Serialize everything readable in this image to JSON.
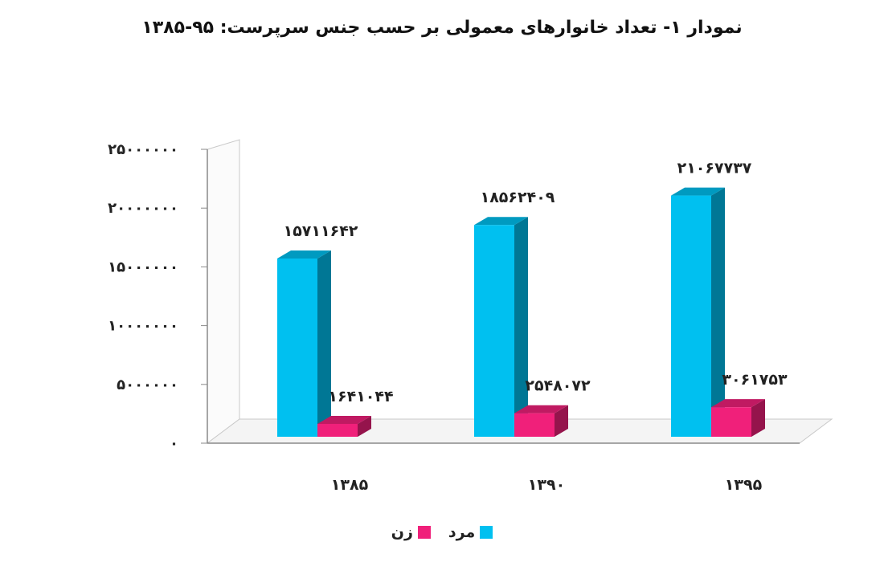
{
  "title": "نمودار ۱- تعداد خانوارهای معمولی بر حسب جنس سرپرست: ۹۵-۱۳۸۵",
  "chart_data": {
    "type": "bar",
    "title": "نمودار ۱- تعداد خانوارهای معمولی بر حسب جنس سرپرست: ۹۵-۱۳۸۵",
    "categories": [
      "۱۳۸۵",
      "۱۳۹۰",
      "۱۳۹۵"
    ],
    "series": [
      {
        "name": "مرد",
        "color": "#00c0f0",
        "values": [
          15711642,
          18562409,
          21067737
        ],
        "labels": [
          "۱۵۷۱۱۶۴۲",
          "۱۸۵۶۲۴۰۹",
          "۲۱۰۶۷۷۳۷"
        ]
      },
      {
        "name": "زن",
        "color": "#f0207a",
        "values": [
          1641044,
          2548072,
          3061753
        ],
        "labels": [
          "۱۶۴۱۰۴۴",
          "۲۵۴۸۰۷۲",
          "۳۰۶۱۷۵۳"
        ]
      }
    ],
    "ylim": [
      0,
      25000000
    ],
    "yticks": [
      0,
      5000000,
      10000000,
      15000000,
      20000000,
      25000000
    ],
    "ytick_labels": [
      "۰",
      "۵۰۰۰۰۰۰",
      "۱۰۰۰۰۰۰۰",
      "۱۵۰۰۰۰۰۰",
      "۲۰۰۰۰۰۰۰",
      "۲۵۰۰۰۰۰۰"
    ],
    "xlabel": "",
    "ylabel": "",
    "legend_position": "bottom",
    "grid": false,
    "style": "3d"
  }
}
